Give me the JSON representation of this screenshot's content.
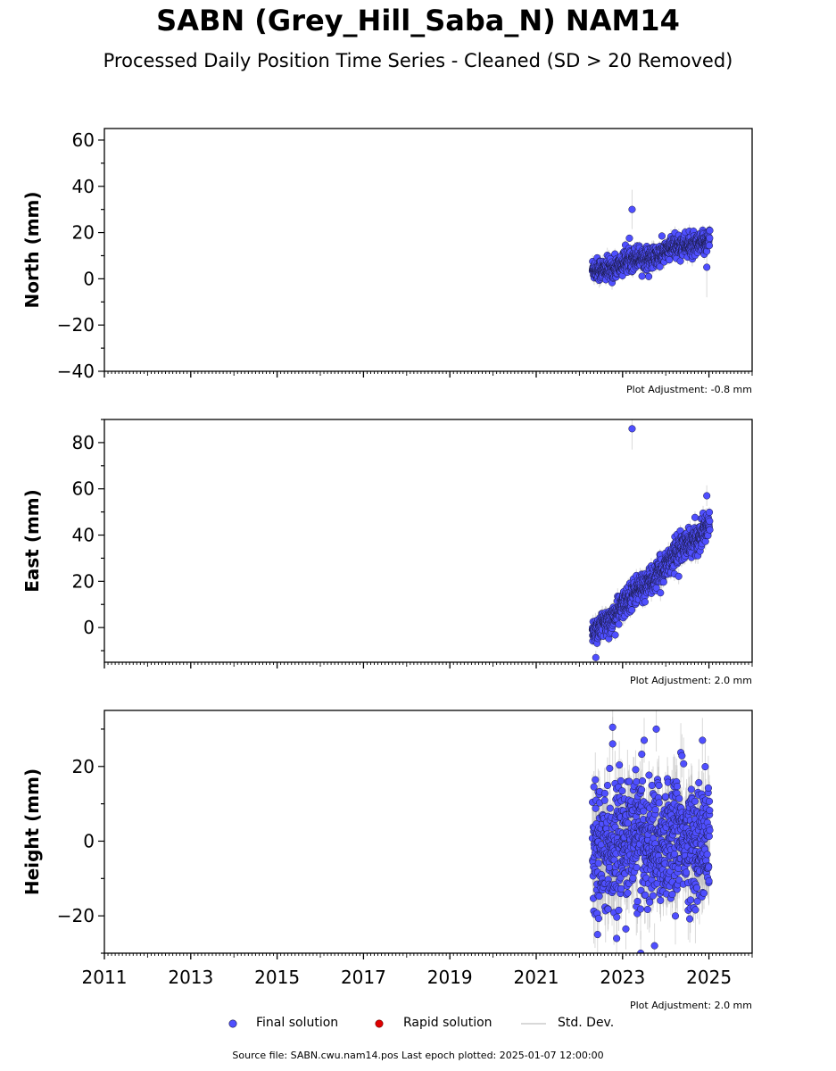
{
  "title": "SABN (Grey_Hill_Saba_N) NAM14",
  "subtitle": "Processed Daily Position Time Series - Cleaned (SD > 20 Removed)",
  "source": "Source file: SABN.cwu.nam14.pos  Last epoch plotted: 2025-01-07 12:00:00",
  "colors": {
    "final": "#4f4fff",
    "rapid": "#e00000",
    "stddev": "#bbbbbb",
    "edge": "#1a1a44"
  },
  "legend": {
    "final": "Final solution",
    "rapid": "Rapid solution",
    "stddev": "Std. Dev."
  },
  "chart_data": [
    {
      "type": "scatter",
      "ylabel": "North (mm)",
      "ylim": [
        -40,
        65
      ],
      "yticks": [
        -40,
        -20,
        0,
        20,
        40,
        60
      ],
      "xlim": [
        2011,
        2026
      ],
      "xticks": [
        2011,
        2013,
        2015,
        2017,
        2019,
        2021,
        2023,
        2025
      ],
      "show_xticklabels": false,
      "adjustment": "Plot Adjustment: -0.8 mm",
      "series": [
        {
          "trend": {
            "x_start": 2022.3,
            "x_end": 2025.02,
            "y_start": 3.0,
            "y_end": 17.0,
            "scatter": 2.4,
            "sd": 2.2
          },
          "outliers": [
            {
              "x": 2023.22,
              "y": 30.0,
              "sd": 8.5
            },
            {
              "x": 2024.95,
              "y": 5.0,
              "sd": 13.0
            }
          ]
        }
      ]
    },
    {
      "type": "scatter",
      "ylabel": "East (mm)",
      "ylim": [
        -15,
        90
      ],
      "yticks": [
        0,
        20,
        40,
        60,
        80
      ],
      "xlim": [
        2011,
        2026
      ],
      "xticks": [
        2011,
        2013,
        2015,
        2017,
        2019,
        2021,
        2023,
        2025
      ],
      "show_xticklabels": false,
      "adjustment": "Plot Adjustment: 2.0 mm",
      "series": [
        {
          "trend": {
            "x_start": 2022.3,
            "x_end": 2025.02,
            "y_start": -3.0,
            "y_end": 45.0,
            "scatter": 3.0,
            "sd": 2.5
          },
          "outliers": [
            {
              "x": 2023.22,
              "y": 86.0,
              "sd": 9.0
            },
            {
              "x": 2024.95,
              "y": 57.0,
              "sd": 4.5
            },
            {
              "x": 2022.38,
              "y": -13.0,
              "sd": 3.0
            }
          ]
        }
      ]
    },
    {
      "type": "scatter",
      "ylabel": "Height (mm)",
      "ylim": [
        -30,
        35
      ],
      "yticks": [
        -20,
        0,
        20
      ],
      "xlim": [
        2011,
        2026
      ],
      "xticks": [
        2011,
        2013,
        2015,
        2017,
        2019,
        2021,
        2023,
        2025
      ],
      "xticklabels": [
        "2011",
        "2013",
        "2015",
        "2017",
        "2019",
        "2021",
        "2023",
        "2025"
      ],
      "show_xticklabels": true,
      "adjustment": "Plot Adjustment: 2.0 mm",
      "series": [
        {
          "trend": {
            "x_start": 2022.3,
            "x_end": 2025.02,
            "y_start": 0.0,
            "y_end": 0.0,
            "scatter": 8.0,
            "sd": 6.0
          },
          "outliers": [
            {
              "x": 2022.77,
              "y": 30.5,
              "sd": 6.0
            },
            {
              "x": 2023.78,
              "y": 30.0,
              "sd": 6.0
            },
            {
              "x": 2023.5,
              "y": 27.0,
              "sd": 6.0
            },
            {
              "x": 2024.85,
              "y": 27.0,
              "sd": 6.0
            },
            {
              "x": 2022.42,
              "y": -25.0,
              "sd": 6.0
            },
            {
              "x": 2023.42,
              "y": -30.0,
              "sd": 6.0
            },
            {
              "x": 2023.74,
              "y": -28.0,
              "sd": 6.0
            }
          ]
        }
      ]
    }
  ]
}
